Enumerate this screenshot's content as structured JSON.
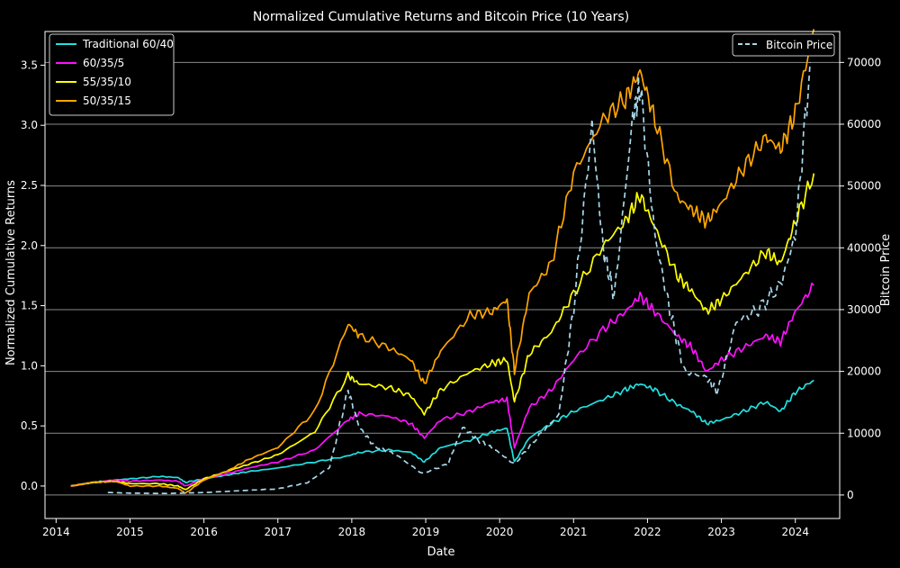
{
  "chart_data": {
    "type": "line",
    "title": "Normalized Cumulative Returns and Bitcoin Price (10 Years)",
    "xlabel": "Date",
    "ylabel": "Normalized Cumulative Returns",
    "y2label": "Bitcoin Price",
    "xlim": [
      2013.85,
      2024.6
    ],
    "ylim": [
      -0.27,
      3.78
    ],
    "y2lim": [
      -3800,
      75000
    ],
    "xticks": [
      "2014",
      "2015",
      "2016",
      "2017",
      "2018",
      "2019",
      "2020",
      "2021",
      "2022",
      "2023",
      "2024"
    ],
    "yticks": [
      "0.0",
      "0.5",
      "1.0",
      "1.5",
      "2.0",
      "2.5",
      "3.0",
      "3.5"
    ],
    "y2ticks": [
      "0",
      "10000",
      "20000",
      "30000",
      "40000",
      "50000",
      "60000",
      "70000"
    ],
    "legend_left": [
      "Traditional 60/40",
      "60/35/5",
      "55/35/10",
      "50/35/15"
    ],
    "legend_right": [
      "Bitcoin Price"
    ],
    "series": [
      {
        "name": "Traditional 60/40",
        "color": "#22e0e0",
        "x": [
          2014.2,
          2014.5,
          2014.8,
          2015.0,
          2015.4,
          2015.65,
          2015.75,
          2016.0,
          2016.3,
          2016.6,
          2017.0,
          2017.5,
          2017.95,
          2018.1,
          2018.5,
          2018.8,
          2018.98,
          2019.2,
          2019.6,
          2019.9,
          2020.1,
          2020.2,
          2020.4,
          2020.7,
          2021.0,
          2021.4,
          2021.7,
          2021.9,
          2022.1,
          2022.4,
          2022.6,
          2022.8,
          2023.0,
          2023.3,
          2023.6,
          2023.8,
          2024.0,
          2024.25
        ],
        "values": [
          0.0,
          0.03,
          0.05,
          0.06,
          0.08,
          0.07,
          0.03,
          0.06,
          0.09,
          0.12,
          0.15,
          0.2,
          0.25,
          0.28,
          0.3,
          0.28,
          0.2,
          0.32,
          0.38,
          0.45,
          0.48,
          0.2,
          0.4,
          0.52,
          0.62,
          0.72,
          0.8,
          0.85,
          0.8,
          0.68,
          0.62,
          0.52,
          0.55,
          0.62,
          0.7,
          0.62,
          0.78,
          0.88
        ]
      },
      {
        "name": "60/35/5",
        "color": "#ff10ff",
        "x": [
          2014.2,
          2014.5,
          2014.8,
          2015.0,
          2015.4,
          2015.65,
          2015.75,
          2016.0,
          2016.3,
          2016.6,
          2017.0,
          2017.5,
          2017.95,
          2018.1,
          2018.5,
          2018.8,
          2018.98,
          2019.2,
          2019.6,
          2019.9,
          2020.1,
          2020.2,
          2020.4,
          2020.7,
          2021.0,
          2021.4,
          2021.7,
          2021.9,
          2022.1,
          2022.4,
          2022.6,
          2022.8,
          2023.0,
          2023.3,
          2023.6,
          2023.8,
          2024.0,
          2024.25
        ],
        "values": [
          0.0,
          0.03,
          0.05,
          0.04,
          0.05,
          0.04,
          0.0,
          0.06,
          0.1,
          0.15,
          0.2,
          0.3,
          0.55,
          0.6,
          0.58,
          0.52,
          0.4,
          0.55,
          0.62,
          0.7,
          0.72,
          0.32,
          0.65,
          0.8,
          1.05,
          1.3,
          1.45,
          1.58,
          1.45,
          1.25,
          1.15,
          0.95,
          1.05,
          1.15,
          1.25,
          1.2,
          1.45,
          1.67
        ]
      },
      {
        "name": "55/35/10",
        "color": "#ffff00",
        "x": [
          2014.2,
          2014.5,
          2014.8,
          2015.0,
          2015.4,
          2015.65,
          2015.75,
          2016.0,
          2016.3,
          2016.6,
          2017.0,
          2017.5,
          2017.95,
          2018.1,
          2018.5,
          2018.8,
          2018.98,
          2019.2,
          2019.6,
          2019.9,
          2020.1,
          2020.2,
          2020.4,
          2020.7,
          2021.0,
          2021.4,
          2021.7,
          2021.9,
          2022.1,
          2022.4,
          2022.6,
          2022.8,
          2023.0,
          2023.3,
          2023.6,
          2023.8,
          2024.0,
          2024.25
        ],
        "values": [
          0.0,
          0.03,
          0.04,
          0.02,
          0.02,
          0.0,
          -0.03,
          0.06,
          0.12,
          0.18,
          0.26,
          0.45,
          0.92,
          0.85,
          0.82,
          0.75,
          0.6,
          0.8,
          0.95,
          1.02,
          1.05,
          0.7,
          1.1,
          1.28,
          1.6,
          2.0,
          2.2,
          2.42,
          2.15,
          1.75,
          1.62,
          1.45,
          1.55,
          1.75,
          1.95,
          1.85,
          2.2,
          2.6
        ]
      },
      {
        "name": "50/35/15",
        "color": "#ffa500",
        "x": [
          2014.2,
          2014.5,
          2014.8,
          2015.0,
          2015.4,
          2015.65,
          2015.75,
          2016.0,
          2016.3,
          2016.6,
          2017.0,
          2017.5,
          2017.95,
          2018.1,
          2018.5,
          2018.8,
          2018.98,
          2019.2,
          2019.6,
          2019.9,
          2020.1,
          2020.2,
          2020.4,
          2020.7,
          2021.0,
          2021.4,
          2021.7,
          2021.9,
          2022.1,
          2022.4,
          2022.6,
          2022.8,
          2023.0,
          2023.3,
          2023.6,
          2023.8,
          2024.0,
          2024.25
        ],
        "values": [
          0.0,
          0.03,
          0.04,
          0.0,
          0.0,
          -0.02,
          -0.06,
          0.05,
          0.12,
          0.22,
          0.32,
          0.62,
          1.35,
          1.25,
          1.15,
          1.05,
          0.85,
          1.12,
          1.42,
          1.45,
          1.55,
          0.95,
          1.6,
          1.85,
          2.6,
          3.05,
          3.22,
          3.45,
          3.05,
          2.4,
          2.3,
          2.2,
          2.35,
          2.65,
          2.9,
          2.8,
          3.1,
          3.8
        ]
      },
      {
        "name": "Bitcoin Price",
        "color": "#a8d8ea",
        "axis": "right",
        "style": "dashed",
        "x": [
          2014.7,
          2015.0,
          2015.5,
          2016.0,
          2016.5,
          2017.0,
          2017.4,
          2017.7,
          2017.95,
          2018.1,
          2018.3,
          2018.6,
          2018.95,
          2019.3,
          2019.5,
          2019.7,
          2019.95,
          2020.2,
          2020.5,
          2020.8,
          2021.0,
          2021.25,
          2021.4,
          2021.55,
          2021.8,
          2021.9,
          2022.1,
          2022.3,
          2022.5,
          2022.8,
          2022.95,
          2023.2,
          2023.5,
          2023.8,
          2024.0,
          2024.2
        ],
        "values": [
          400,
          300,
          250,
          400,
          700,
          1000,
          2000,
          4500,
          17000,
          11000,
          8000,
          6500,
          3500,
          5000,
          11000,
          9000,
          7200,
          5000,
          9200,
          13000,
          30000,
          60000,
          40000,
          32000,
          61000,
          66000,
          42000,
          30000,
          20000,
          19000,
          16600,
          28000,
          30000,
          34000,
          42000,
          70000
        ]
      }
    ]
  }
}
